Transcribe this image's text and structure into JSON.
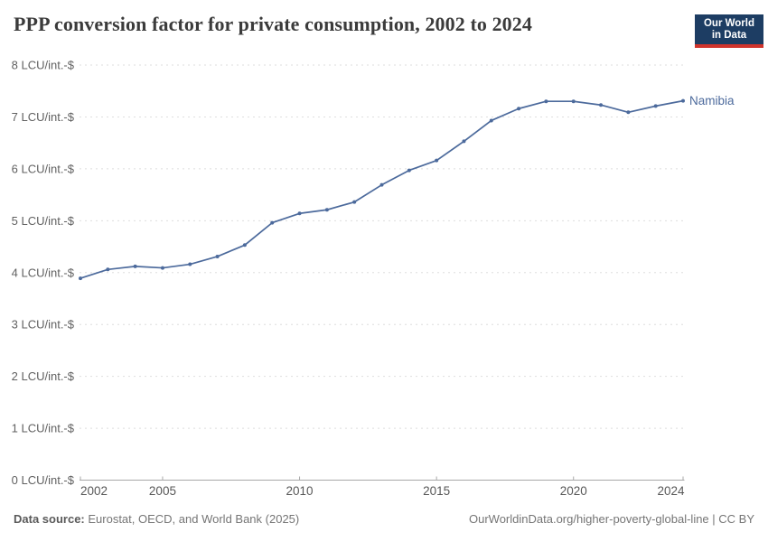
{
  "header": {
    "title": "PPP conversion factor for private consumption, 2002 to 2024",
    "logo": {
      "line1": "Our World",
      "line2": "in Data"
    }
  },
  "chart_data": {
    "type": "line",
    "title": "PPP conversion factor for private consumption, 2002 to 2024",
    "unit": "LCU/int.-$",
    "x": [
      2002,
      2003,
      2004,
      2005,
      2006,
      2007,
      2008,
      2009,
      2010,
      2011,
      2012,
      2013,
      2014,
      2015,
      2016,
      2017,
      2018,
      2019,
      2020,
      2021,
      2022,
      2023,
      2024
    ],
    "series": [
      {
        "name": "Namibia",
        "color": "#4C6A9C",
        "values": [
          3.89,
          4.06,
          4.12,
          4.09,
          4.16,
          4.31,
          4.53,
          4.96,
          5.14,
          5.21,
          5.36,
          5.69,
          5.97,
          6.16,
          6.53,
          6.93,
          7.16,
          7.3,
          7.3,
          7.23,
          7.09,
          7.21,
          7.31
        ]
      }
    ],
    "ylim": [
      0,
      8
    ],
    "ytick_step": 1,
    "ytick_format": "{v} LCU/int.-$",
    "xticks": [
      2002,
      2005,
      2010,
      2015,
      2020,
      2024
    ],
    "grid": "horizontal-dashed",
    "legend": "end-of-line-label"
  },
  "footer": {
    "source_label": "Data source:",
    "source_text": " Eurostat, OECD, and World Bank (2025)",
    "attribution": "OurWorldinData.org/higher-poverty-global-line | CC BY"
  },
  "colors": {
    "title": "#3b3b3b",
    "axis_labels": "#616161",
    "x_labels": "#575757",
    "grid": "#dedede",
    "axis_line": "#a8a8a8",
    "series_line": "#4C6A9C",
    "footer": "#757575",
    "footer_label": "#5a5a5a",
    "logo_bg": "#1d3d63",
    "logo_accent": "#d0342c",
    "logo_text": "#ffffff"
  }
}
